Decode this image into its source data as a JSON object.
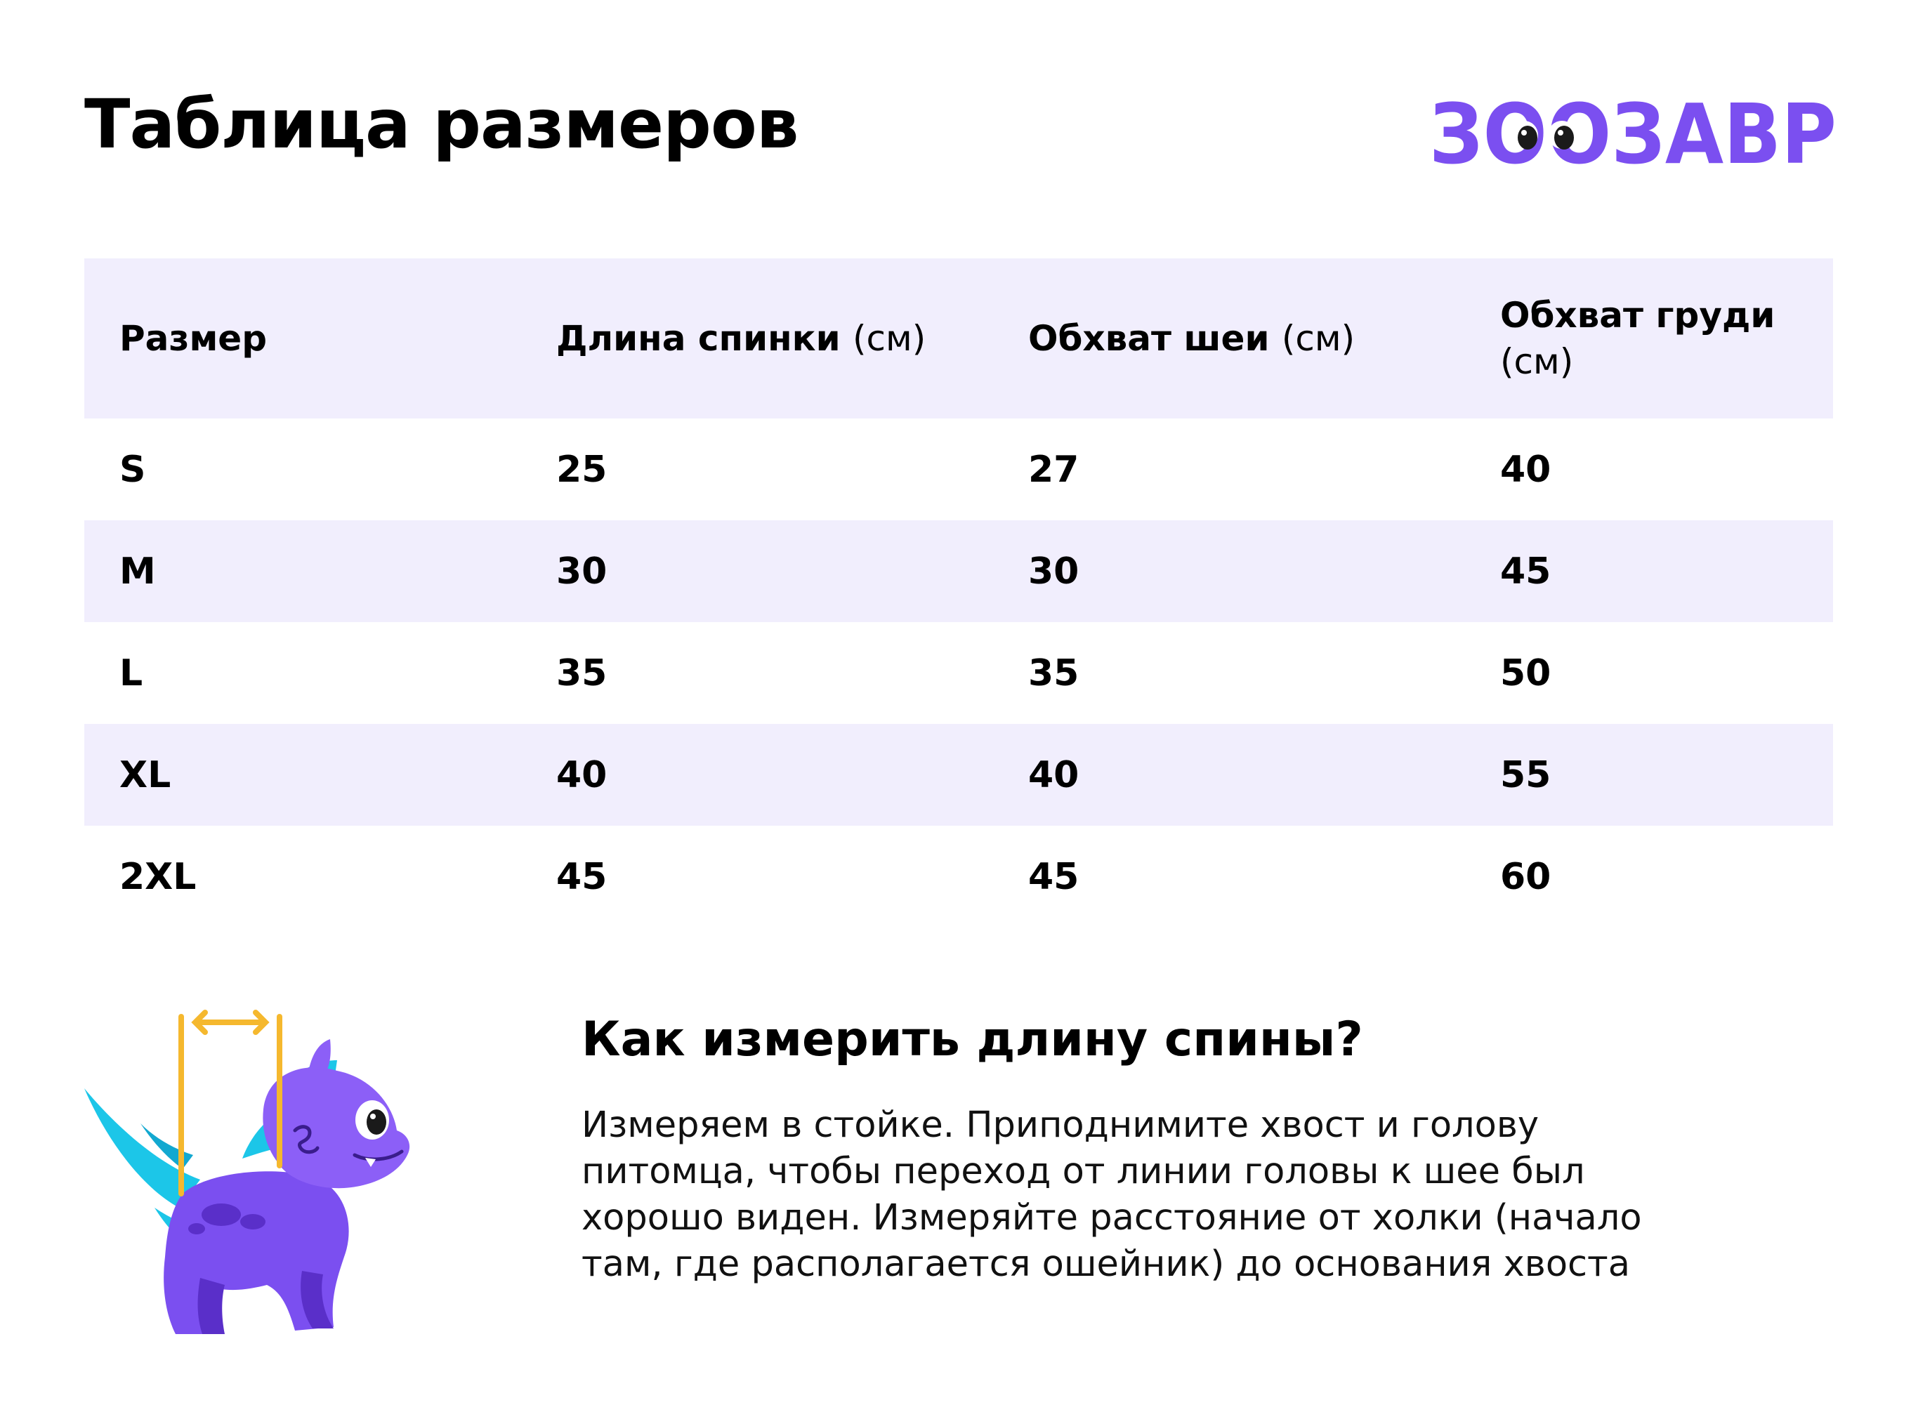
{
  "title": "Таблица размеров",
  "brand": {
    "name": "ЗООЗАВР",
    "color": "#7b4ff0"
  },
  "table": {
    "headers": [
      {
        "main": "Размер",
        "unit": ""
      },
      {
        "main": "Длина спинки",
        "unit": "(см)"
      },
      {
        "main": "Обхват шеи",
        "unit": "(см)"
      },
      {
        "main": "Обхват груди",
        "unit": "(см)"
      }
    ],
    "rows": [
      [
        "S",
        "25",
        "27",
        "40"
      ],
      [
        "M",
        "30",
        "30",
        "45"
      ],
      [
        "L",
        "35",
        "35",
        "50"
      ],
      [
        "XL",
        "40",
        "40",
        "55"
      ],
      [
        "2XL",
        "45",
        "45",
        "60"
      ]
    ],
    "stripe_color": "#f1eefd"
  },
  "howto": {
    "title": "Как измерить длину спины?",
    "text": "Измеряем в стойке. Приподнимите хвост и голову питомца, чтобы переход от линии головы к шее был хорошо виден. Измеряйте расстояние от холки (начало там, где располагается ошейник) до основания хвоста"
  },
  "mascot": {
    "icon": "dinosaur-mascot-icon",
    "body_color": "#7b4ff0",
    "spike_color": "#1cc6e8",
    "measure_color": "#f5b82e"
  }
}
